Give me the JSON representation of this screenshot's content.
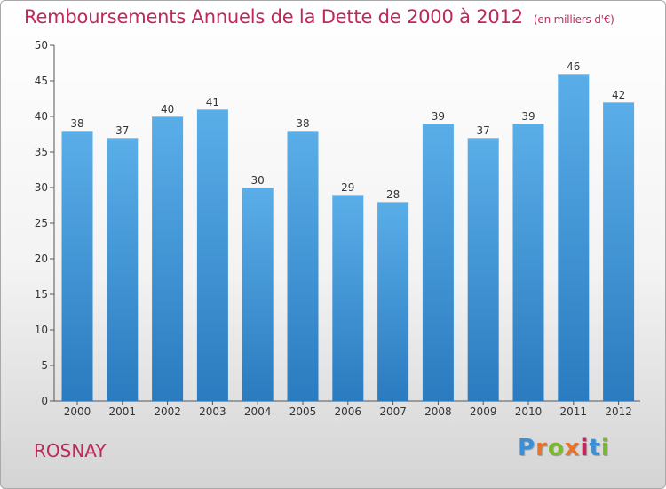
{
  "header": {
    "title": "Remboursements Annuels de la Dette de 2000 à 2012",
    "subtitle": "(en milliers d'€)"
  },
  "footer": {
    "town": "ROSNAY",
    "logo": "Proxiti"
  },
  "colors": {
    "title": "#c0285c",
    "bar_top": "#5aaee8",
    "bar_bottom": "#2a7bbf",
    "logo_letters": [
      "#3a8fd6",
      "#e8732a",
      "#7cb82f",
      "#e8732a",
      "#c0285c",
      "#3a8fd6",
      "#7cb82f"
    ]
  },
  "chart_data": {
    "type": "bar",
    "categories": [
      "2000",
      "2001",
      "2002",
      "2003",
      "2004",
      "2005",
      "2006",
      "2007",
      "2008",
      "2009",
      "2010",
      "2011",
      "2012"
    ],
    "values": [
      38,
      37,
      40,
      41,
      30,
      38,
      29,
      28,
      39,
      37,
      39,
      46,
      42
    ],
    "ylim": [
      0,
      50
    ],
    "yticks": [
      0,
      5,
      10,
      15,
      20,
      25,
      30,
      35,
      40,
      45,
      50
    ],
    "grid": false,
    "data_labels": true
  }
}
